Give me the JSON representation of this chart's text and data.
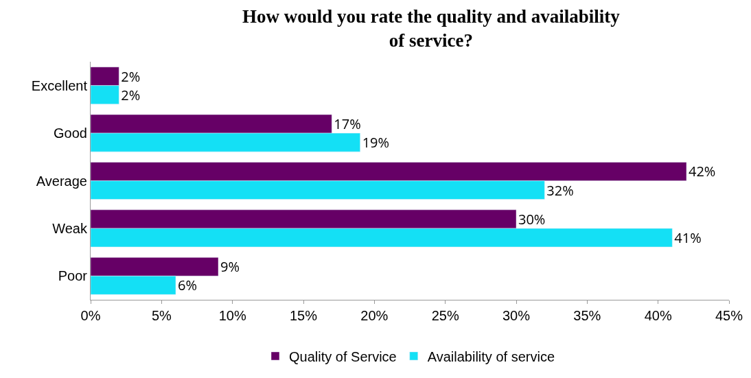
{
  "chart_data": {
    "type": "bar",
    "orientation": "horizontal",
    "title": "How would you rate the quality and availability of service?",
    "categories": [
      "Excellent",
      "Good",
      "Average",
      "Weak",
      "Poor"
    ],
    "series": [
      {
        "name": "Quality of Service",
        "color": "#660066",
        "values": [
          2,
          17,
          42,
          30,
          9
        ],
        "value_labels": [
          "2%",
          "17%",
          "42%",
          "30%",
          "9%"
        ]
      },
      {
        "name": "Availability of service",
        "color": "#14e0f5",
        "values": [
          2,
          19,
          32,
          41,
          6
        ],
        "value_labels": [
          "2%",
          "19%",
          "32%",
          "41%",
          "6%"
        ]
      }
    ],
    "xlim": [
      0,
      45
    ],
    "xticks": [
      {
        "value": 0,
        "label": "0%"
      },
      {
        "value": 5,
        "label": "5%"
      },
      {
        "value": 10,
        "label": "10%"
      },
      {
        "value": 15,
        "label": "15%"
      },
      {
        "value": 20,
        "label": "20%"
      },
      {
        "value": 25,
        "label": "25%"
      },
      {
        "value": 30,
        "label": "30%"
      },
      {
        "value": 35,
        "label": "35%"
      },
      {
        "value": 40,
        "label": "40%"
      },
      {
        "value": 45,
        "label": "45%"
      }
    ],
    "legend": "bottom"
  }
}
